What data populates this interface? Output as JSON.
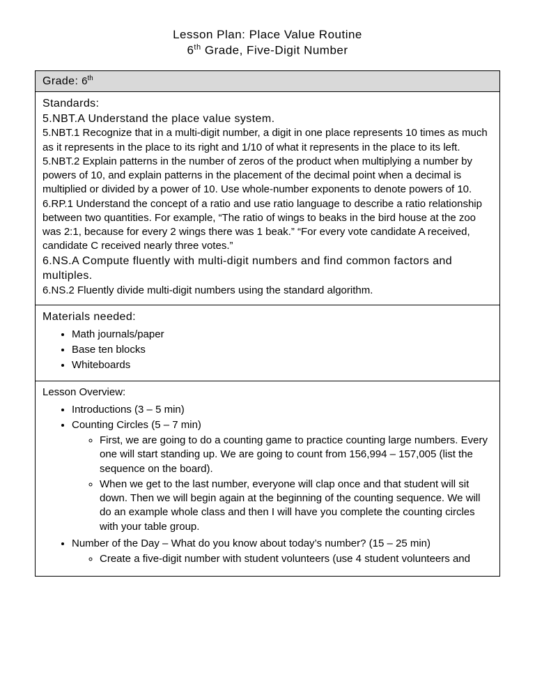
{
  "title": "Lesson Plan: Place Value Routine",
  "subtitle_prefix": "6",
  "subtitle_suffix": " Grade, Five-Digit Number",
  "grade_label": "Grade: ",
  "grade_value": "6",
  "standards": {
    "heading": "Standards:",
    "s1_head": "5.NBT.A Understand the place value system.",
    "s1_body1": "5.NBT.1 Recognize that in a multi-digit number, a digit in one place represents 10 times as much as it represents in the place to its right and 1/10 of what it represents in the place to its left.",
    "s1_body2": "5.NBT.2 Explain patterns in the number of zeros of the product when multiplying a number by powers of 10, and explain patterns in the placement of the decimal point when a decimal is multiplied or divided by a power of 10. Use whole-number exponents to denote powers of 10.",
    "s1_body3": "6.RP.1 Understand the concept of a ratio and use ratio language to describe a ratio relationship between two quantities. For example, “The ratio of wings to beaks in the bird house at the zoo was 2:1, because for every 2 wings there was 1 beak.” “For every vote candidate A received, candidate C received nearly three votes.”",
    "s2_head": "6.NS.A Compute fluently with multi-digit numbers and find common factors and multiples.",
    "s2_body1": "6.NS.2 Fluently divide multi-digit numbers using the standard algorithm."
  },
  "materials": {
    "heading": "Materials needed:",
    "items": [
      "Math journals/paper",
      "Base ten blocks",
      "Whiteboards"
    ]
  },
  "overview": {
    "heading": "Lesson Overview:",
    "items": [
      {
        "label": "Introductions (3 – 5 min)",
        "sub": []
      },
      {
        "label": "Counting Circles  (5 – 7 min)",
        "sub": [
          "First, we are going to do a counting game to practice counting large numbers. Every one will start standing up. We are going to count from 156,994 – 157,005 (list the sequence on the board).",
          "When we get to the last number, everyone will clap once and that student will sit down. Then we will begin again at the beginning of the counting sequence. We will do an example whole class and then I will have you complete the counting circles with your table group."
        ]
      },
      {
        "label": "Number of the Day – What do you know about today’s number? (15 – 25 min)",
        "sub": [
          "Create a five-digit number with student volunteers (use 4 student volunteers and"
        ]
      }
    ]
  }
}
